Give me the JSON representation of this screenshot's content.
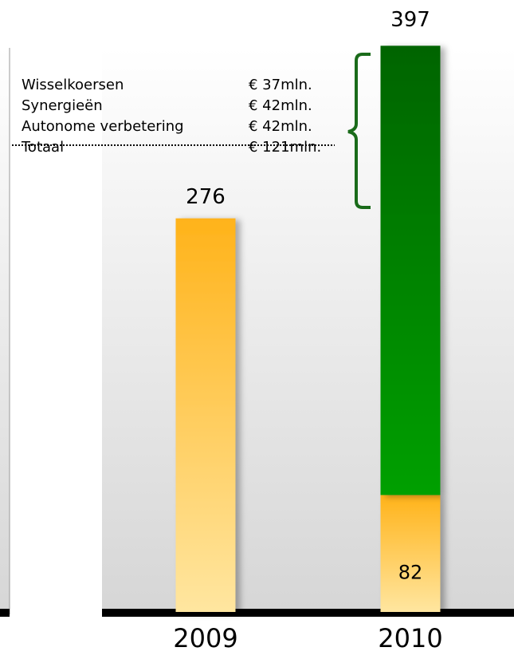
{
  "chart_data": {
    "type": "bar",
    "categories": [
      "2009",
      "2010"
    ],
    "series": [
      {
        "color": "#ffb31a",
        "values": [
          276,
          82
        ]
      },
      {
        "color": "#00a000",
        "values": [
          null,
          315
        ]
      }
    ],
    "totals": [
      null,
      397
    ],
    "ylim": [
      0,
      400
    ],
    "breakdown": [
      {
        "label": "Wisselkoersen",
        "amount": "€ 37mln."
      },
      {
        "label": "Synergieën",
        "amount": "€ 42mln."
      },
      {
        "label": "Autonome verbetering",
        "amount": "€ 42mln."
      },
      {
        "label": "Totaal",
        "amount": "€ 121mln."
      }
    ]
  }
}
